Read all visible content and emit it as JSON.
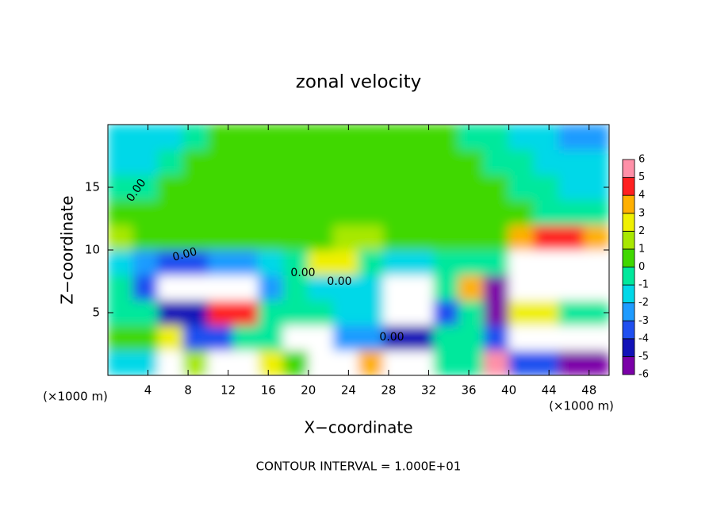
{
  "chart_data": {
    "type": "heatmap",
    "title": "zonal velocity",
    "x_label": "X−coordinate",
    "y_label": "Z−coordinate",
    "x_unit_left": "(×1000 m)",
    "x_unit_right": "(×1000 m)",
    "footer": "CONTOUR INTERVAL = 1.000E+01",
    "contour_labels": [
      "0.00",
      "0.00",
      "0.00",
      "0.00",
      "0.00"
    ],
    "xlim": [
      0,
      50
    ],
    "ylim": [
      0,
      20
    ],
    "xticks": [
      4,
      8,
      12,
      16,
      20,
      24,
      28,
      32,
      36,
      40,
      44,
      48
    ],
    "yticks": [
      5,
      10,
      15
    ],
    "colorbar_ticks": [
      -6,
      -5,
      -4,
      -3,
      -2,
      -1,
      0,
      1,
      2,
      3,
      4,
      5,
      6
    ],
    "colors": [
      "#7b00a8",
      "#1212b8",
      "#1f4ff0",
      "#1e9bff",
      "#00d8e8",
      "#00e89c",
      "#40d800",
      "#a8e800",
      "#f0f000",
      "#ffb000",
      "#ff2020",
      "#ff90a8"
    ],
    "values": [
      [
        -1,
        -1,
        8,
        2,
        -8,
        -8,
        3,
        1,
        -8,
        -8,
        4,
        8,
        8,
        0,
        0,
        6,
        -3,
        -3,
        -5,
        -5
      ],
      [
        1,
        1,
        3,
        -3,
        -3,
        0,
        0,
        8,
        8,
        -2,
        -2,
        -4,
        -4,
        0,
        0,
        -3,
        -8,
        -8,
        -8,
        -8
      ],
      [
        0,
        0,
        -4,
        -4,
        5,
        5,
        0,
        0,
        0,
        -1,
        -1,
        -8,
        -8,
        -3,
        0,
        -5,
        3,
        3,
        0,
        0
      ],
      [
        0,
        -3,
        -8,
        -8,
        8,
        8,
        -2,
        0,
        -1,
        -1,
        -1,
        -8,
        -8,
        0,
        4,
        -5,
        8,
        8,
        8,
        8
      ],
      [
        -1,
        -2,
        -3,
        -3,
        -2,
        -2,
        -1,
        0,
        3,
        3,
        0,
        -1,
        -1,
        0,
        0,
        0,
        8,
        8,
        8,
        8
      ],
      [
        1.5,
        1,
        1,
        0.5,
        0.5,
        0.5,
        0.5,
        0.5,
        1,
        1.5,
        1.5,
        1,
        0.5,
        0.5,
        0.5,
        1,
        4,
        5,
        5,
        4
      ],
      [
        0.5,
        0.5,
        0.5,
        0.5,
        0.5,
        0.5,
        0.5,
        0.5,
        0.5,
        1,
        1,
        1,
        1,
        0.5,
        0.5,
        0.5,
        0.5,
        0,
        0,
        -0.5
      ],
      [
        -0.5,
        -0.5,
        0.5,
        0.5,
        0.5,
        0.5,
        0.5,
        0.5,
        0.5,
        0.5,
        0.5,
        0.5,
        0.5,
        0.5,
        0.5,
        0.5,
        0,
        -0.5,
        -1,
        -1
      ],
      [
        -1,
        -1,
        -0.5,
        0.5,
        0.5,
        0.5,
        0.5,
        0.5,
        0.5,
        1,
        1,
        0.5,
        0.5,
        0.5,
        0.5,
        0,
        -0.5,
        -1,
        -1.5,
        -1.5
      ],
      [
        -1.5,
        -1.5,
        -1,
        -0.5,
        0.5,
        0.5,
        0.5,
        0.5,
        0.5,
        0.5,
        0.5,
        0.5,
        0.5,
        0.5,
        0,
        -0.5,
        -1,
        -1.5,
        -2,
        -2
      ]
    ]
  }
}
